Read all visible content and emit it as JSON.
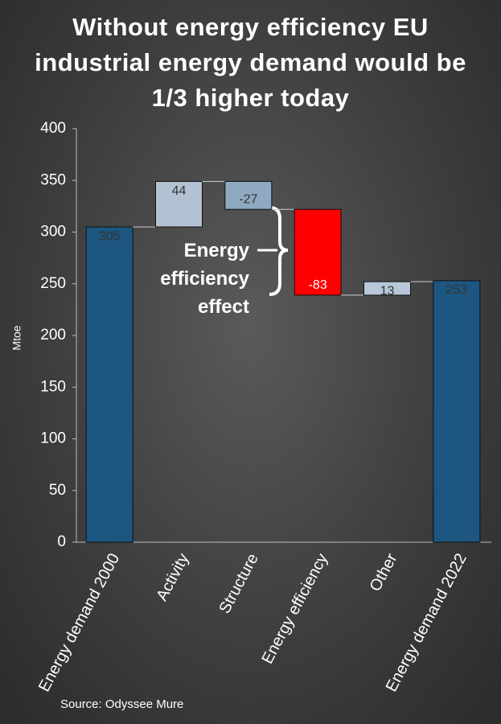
{
  "chart_data": {
    "type": "waterfall",
    "title": "Without energy efficiency EU industrial energy demand would be 1/3 higher today",
    "y_label": "Mtoe",
    "annotation": "Energy efficiency effect",
    "source": "Source: Odyssee Mure",
    "categories": [
      "Energy demand 2000",
      "Activity",
      "Structure",
      "Energy efficiency",
      "Other",
      "Energy demand 2022"
    ],
    "values": [
      305,
      44,
      -27,
      -83,
      13,
      253
    ],
    "is_total": [
      true,
      false,
      false,
      false,
      false,
      true
    ],
    "colors": [
      "#1d5680",
      "#b3c2d2",
      "#8fa9c2",
      "#ff0000",
      "#b7c8da",
      "#1d5680"
    ],
    "label_colors": [
      "#333333",
      "#333333",
      "#333333",
      "#ffffff",
      "#333333",
      "#333333"
    ],
    "ylim": [
      0,
      400
    ],
    "yticks": [
      0,
      50,
      100,
      150,
      200,
      250,
      300,
      350,
      400
    ]
  }
}
